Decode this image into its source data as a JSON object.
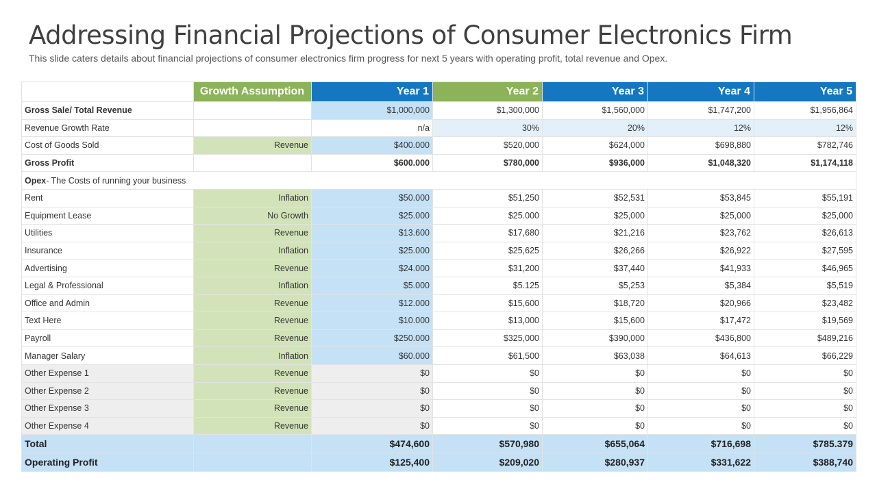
{
  "page": {
    "title": "Addressing Financial Projections of Consumer Electronics Firm",
    "subtitle": "This slide caters details about financial projections of consumer electronics firm progress for next 5 years with operating profit, total revenue and Opex."
  },
  "table": {
    "headers": {
      "growth": "Growth Assumption",
      "years": [
        "Year 1",
        "Year 2",
        "Year 3",
        "Year 4",
        "Year 5"
      ]
    },
    "gross_sale": {
      "label": "Gross  Sale/ Total Revenue",
      "growth": "",
      "values": [
        "$1,000,000",
        "$1,300,000",
        "$1,560,000",
        "$1,747,200",
        "$1,956,864"
      ]
    },
    "growth_rate": {
      "label": "Revenue  Growth Rate",
      "growth": "",
      "values": [
        "n/a",
        "30%",
        "20%",
        "12%",
        "12%"
      ]
    },
    "cogs": {
      "label": "Cost of Goods Sold",
      "growth": "Revenue",
      "values": [
        "$400.000",
        "$520,000",
        "$624,000",
        "$698,880",
        "$782,746"
      ]
    },
    "gross_profit": {
      "label": "Gross  Profit",
      "growth": "",
      "values": [
        "$600.000",
        "$780,000",
        "$936,000",
        "$1,048,320",
        "$1,174,118"
      ]
    },
    "opex_heading": {
      "bold": "Opex",
      "rest": "- The  Costs of running  your business"
    },
    "opex_rows": [
      {
        "label": "Rent",
        "growth": "Inflation",
        "values": [
          "$50.000",
          "$51,250",
          "$52,531",
          "$53,845",
          "$55,191"
        ]
      },
      {
        "label": "Equipment Lease",
        "growth": "No Growth",
        "values": [
          "$25.000",
          "$25.000",
          "$25,000",
          "$25,000",
          "$25,000"
        ]
      },
      {
        "label": "Utilities",
        "growth": "Revenue",
        "values": [
          "$13.600",
          "$17,680",
          "$21,216",
          "$23,762",
          "$26,613"
        ]
      },
      {
        "label": "Insurance",
        "growth": "Inflation",
        "values": [
          "$25.000",
          "$25,625",
          "$26,266",
          "$26,922",
          "$27,595"
        ]
      },
      {
        "label": "Advertising",
        "growth": "Revenue",
        "values": [
          "$24.000",
          "$31,200",
          "$37,440",
          "$41,933",
          "$46,965"
        ]
      },
      {
        "label": "Legal & Professional",
        "growth": "Inflation",
        "values": [
          "$5.000",
          "$5.125",
          "$5,253",
          "$5,384",
          "$5,519"
        ]
      },
      {
        "label": "Office and Admin",
        "growth": "Revenue",
        "values": [
          "$12.000",
          "$15,600",
          "$18,720",
          "$20,966",
          "$23,482"
        ]
      },
      {
        "label": "Text Here",
        "growth": "Revenue",
        "values": [
          "$10.000",
          "$13,000",
          "$15,600",
          "$17,472",
          "$19,569"
        ]
      },
      {
        "label": "Payroll",
        "growth": "Revenue",
        "values": [
          "$250.000",
          "$325,000",
          "$390,000",
          "$436,800",
          "$489,216"
        ]
      },
      {
        "label": "Manager Salary",
        "growth": "Inflation",
        "values": [
          "$60.000",
          "$61,500",
          "$63,038",
          "$64,613",
          "$66,229"
        ]
      }
    ],
    "other_rows": [
      {
        "label": "Other Expense 1",
        "growth": "Revenue",
        "values": [
          "$0",
          "$0",
          "$0",
          "$0",
          "$0"
        ]
      },
      {
        "label": "Other Expense 2",
        "growth": "Revenue",
        "values": [
          "$0",
          "$0",
          "$0",
          "$0",
          "$0"
        ]
      },
      {
        "label": "Other Expense 3",
        "growth": "Revenue",
        "values": [
          "$0",
          "$0",
          "$0",
          "$0",
          "$0"
        ]
      },
      {
        "label": "Other Expense 4",
        "growth": "Revenue",
        "values": [
          "$0",
          "$0",
          "$0",
          "$0",
          "$0"
        ]
      }
    ],
    "total": {
      "label": "Total",
      "values": [
        "$474,600",
        "$570,980",
        "$655,064",
        "$716,698",
        "$785.379"
      ]
    },
    "operating_profit": {
      "label": "Operating Profit",
      "values": [
        "$125,400",
        "$209,020",
        "$280,937",
        "$331,622",
        "$388,740"
      ]
    }
  },
  "colors": {
    "header_blue": "#1577c2",
    "header_green": "#8cb359",
    "assumption_green": "#d3e3b9",
    "year1_blue": "#c5e1f5",
    "light_blue": "#e3f0fa",
    "grey": "#eeeeee"
  }
}
